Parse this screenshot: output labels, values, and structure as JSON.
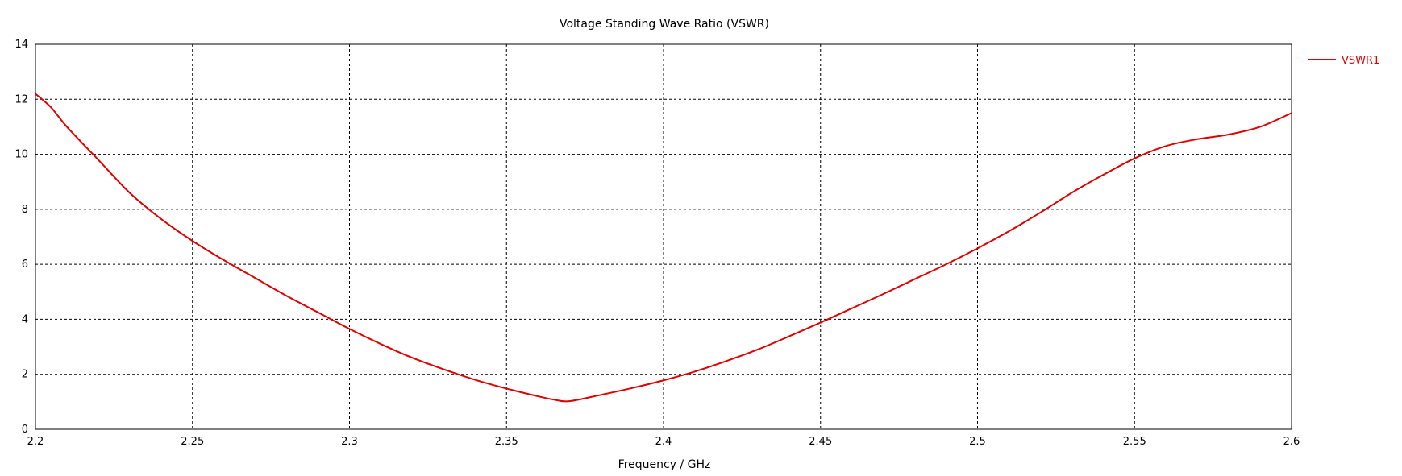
{
  "chart_data": {
    "type": "line",
    "title": "Voltage Standing Wave Ratio (VSWR)",
    "xlabel": "Frequency / GHz",
    "ylabel": "",
    "xlim": [
      2.2,
      2.6
    ],
    "ylim": [
      0,
      14
    ],
    "xticks": [
      "2.2",
      "2.25",
      "2.3",
      "2.35",
      "2.4",
      "2.45",
      "2.5",
      "2.55",
      "2.6"
    ],
    "yticks": [
      "0",
      "2",
      "4",
      "6",
      "8",
      "10",
      "12",
      "14"
    ],
    "grid": true,
    "legend_position": "right",
    "series": [
      {
        "name": "VSWR1",
        "color": "#e00000",
        "x": [
          2.2,
          2.205,
          2.21,
          2.22,
          2.23,
          2.24,
          2.25,
          2.26,
          2.27,
          2.28,
          2.29,
          2.3,
          2.31,
          2.32,
          2.33,
          2.34,
          2.35,
          2.36,
          2.365,
          2.37,
          2.38,
          2.39,
          2.4,
          2.41,
          2.42,
          2.43,
          2.44,
          2.45,
          2.46,
          2.47,
          2.48,
          2.49,
          2.5,
          2.51,
          2.52,
          2.53,
          2.54,
          2.55,
          2.56,
          2.57,
          2.58,
          2.59,
          2.6
        ],
        "y": [
          12.2,
          11.7,
          11.0,
          9.8,
          8.6,
          7.65,
          6.85,
          6.15,
          5.5,
          4.85,
          4.25,
          3.65,
          3.1,
          2.6,
          2.18,
          1.8,
          1.48,
          1.2,
          1.08,
          1.02,
          1.25,
          1.5,
          1.78,
          2.1,
          2.48,
          2.9,
          3.38,
          3.88,
          4.4,
          4.92,
          5.46,
          6.0,
          6.58,
          7.2,
          7.88,
          8.6,
          9.25,
          9.85,
          10.3,
          10.55,
          10.72,
          11.0,
          11.5
        ]
      }
    ]
  }
}
